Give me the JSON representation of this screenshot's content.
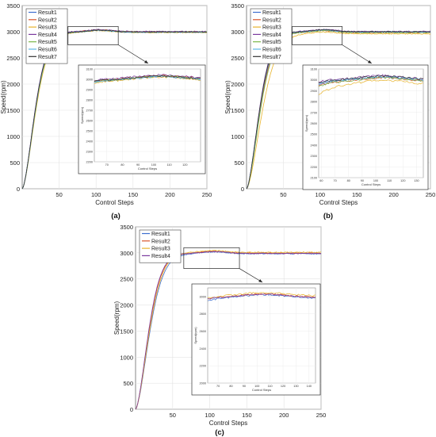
{
  "colors": {
    "Result1": "#3d6fd0",
    "Result2": "#d9552b",
    "Result3": "#e8b42c",
    "Result4": "#7b3a9e",
    "Result5": "#7ab648",
    "Result6": "#5fb7e6",
    "Result7": "#333333"
  },
  "chart_data": [
    {
      "type": "line",
      "panel_label": "(a)",
      "xlabel": "Control Steps",
      "ylabel": "Speed(rpm)",
      "xlim": [
        0,
        250
      ],
      "ylim": [
        0,
        3500
      ],
      "xticks": [
        50,
        100,
        150,
        200,
        250
      ],
      "yticks": [
        0,
        500,
        1000,
        1500,
        2000,
        2500,
        3000,
        3500
      ],
      "grid": true,
      "legend_position": "top-left",
      "series": [
        {
          "name": "Result1",
          "rise_k": 0.045,
          "final": 2990
        },
        {
          "name": "Result2",
          "rise_k": 0.0445,
          "final": 3000
        },
        {
          "name": "Result3",
          "rise_k": 0.043,
          "final": 2985
        },
        {
          "name": "Result4",
          "rise_k": 0.0455,
          "final": 3005
        },
        {
          "name": "Result5",
          "rise_k": 0.044,
          "final": 2995
        },
        {
          "name": "Result6",
          "rise_k": 0.0448,
          "final": 2990
        },
        {
          "name": "Result7",
          "rise_k": 0.0452,
          "final": 2995
        }
      ],
      "inset": {
        "xlabel": "Control Steps",
        "ylabel": "Speed(rpm)",
        "xlim": [
          62,
          130
        ],
        "ylim": [
          2200,
          3100
        ],
        "xticks": [
          70,
          80,
          90,
          100,
          110,
          120
        ],
        "yticks": [
          2200,
          2300,
          2400,
          2500,
          2600,
          2700,
          2800,
          2900,
          3000,
          3100
        ],
        "zoom_box": {
          "x": [
            62,
            130
          ],
          "y": [
            2750,
            3100
          ]
        }
      }
    },
    {
      "type": "line",
      "panel_label": "(b)",
      "xlabel": "Control Steps",
      "ylabel": "Speed(rpm)",
      "xlim": [
        0,
        250
      ],
      "ylim": [
        0,
        3500
      ],
      "xticks": [
        50,
        100,
        150,
        200,
        250
      ],
      "yticks": [
        0,
        500,
        1000,
        1500,
        2000,
        2500,
        3000,
        3500
      ],
      "grid": true,
      "legend_position": "top-left",
      "series": [
        {
          "name": "Result1",
          "rise_k": 0.044,
          "final": 2990
        },
        {
          "name": "Result2",
          "rise_k": 0.043,
          "final": 2985
        },
        {
          "name": "Result3",
          "rise_k": 0.037,
          "final": 2960
        },
        {
          "name": "Result4",
          "rise_k": 0.0455,
          "final": 3005
        },
        {
          "name": "Result5",
          "rise_k": 0.042,
          "final": 2985
        },
        {
          "name": "Result6",
          "rise_k": 0.0445,
          "final": 2995
        },
        {
          "name": "Result7",
          "rise_k": 0.045,
          "final": 3000
        }
      ],
      "inset": {
        "xlabel": "Control Steps",
        "ylabel": "Speed(rpm)",
        "xlim": [
          58,
          135
        ],
        "ylim": [
          2100,
          3100
        ],
        "xticks": [
          60,
          70,
          80,
          90,
          100,
          110,
          120,
          130
        ],
        "yticks": [
          2100,
          2200,
          2300,
          2400,
          2500,
          2600,
          2700,
          2800,
          2900,
          3000,
          3100
        ],
        "zoom_box": {
          "x": [
            62,
            130
          ],
          "y": [
            2750,
            3100
          ]
        }
      }
    },
    {
      "type": "line",
      "panel_label": "(c)",
      "xlabel": "Control Steps",
      "ylabel": "Speed(rpm)",
      "xlim": [
        0,
        250
      ],
      "ylim": [
        0,
        3500
      ],
      "xticks": [
        50,
        100,
        150,
        200,
        250
      ],
      "yticks": [
        0,
        500,
        1000,
        1500,
        2000,
        2500,
        3000,
        3500
      ],
      "grid": true,
      "legend_position": "top-left",
      "series": [
        {
          "name": "Result1",
          "rise_k": 0.041,
          "final": 2985
        },
        {
          "name": "Result2",
          "rise_k": 0.044,
          "final": 2995
        },
        {
          "name": "Result3",
          "rise_k": 0.042,
          "final": 3010
        },
        {
          "name": "Result4",
          "rise_k": 0.045,
          "final": 2990
        }
      ],
      "inset": {
        "xlabel": "Control Steps",
        "ylabel": "Speed(rpm)",
        "xlim": [
          62,
          145
        ],
        "ylim": [
          2000,
          3100
        ],
        "xticks": [
          70,
          80,
          90,
          100,
          110,
          120,
          130,
          140
        ],
        "yticks": [
          2000,
          2200,
          2400,
          2600,
          2800,
          3000
        ],
        "zoom_box": {
          "x": [
            65,
            140
          ],
          "y": [
            2700,
            3100
          ]
        }
      }
    }
  ]
}
